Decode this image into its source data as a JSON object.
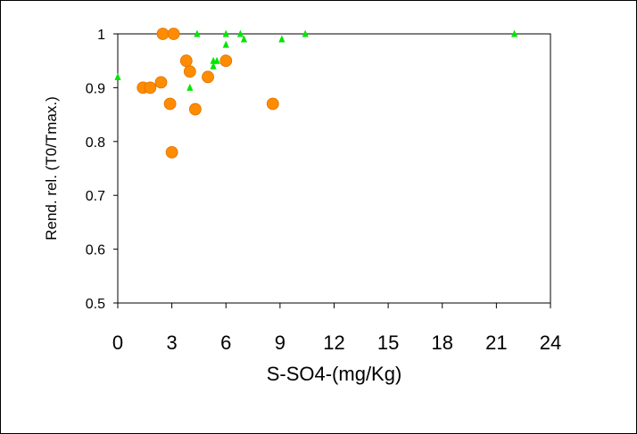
{
  "chart_data": {
    "type": "scatter",
    "title": "",
    "xlabel": "S-SO4-(mg/Kg)",
    "ylabel": "Rend. rel. (T0/Tmax.)",
    "xlim": [
      0,
      24
    ],
    "ylim": [
      0.5,
      1.0
    ],
    "x_ticks": [
      "0",
      "3",
      "6",
      "9",
      "12",
      "15",
      "18",
      "21",
      "24"
    ],
    "y_ticks": [
      "0.5",
      "0.6",
      "0.7",
      "0.8",
      "0.9",
      "1"
    ],
    "grid": false,
    "legend": "none",
    "series": [
      {
        "marker": "circle",
        "color": "#FF8C00",
        "points": [
          [
            2.5,
            1.0
          ],
          [
            3.1,
            1.0
          ],
          [
            1.4,
            0.9
          ],
          [
            1.8,
            0.9
          ],
          [
            2.4,
            0.91
          ],
          [
            3.8,
            0.95
          ],
          [
            4.0,
            0.93
          ],
          [
            5.0,
            0.92
          ],
          [
            6.0,
            0.95
          ],
          [
            2.9,
            0.87
          ],
          [
            4.3,
            0.86
          ],
          [
            8.6,
            0.87
          ],
          [
            3.0,
            0.78
          ]
        ]
      },
      {
        "marker": "triangle",
        "color": "#00E600",
        "points": [
          [
            0.0,
            0.92
          ],
          [
            4.4,
            1.0
          ],
          [
            6.0,
            1.0
          ],
          [
            6.8,
            1.0
          ],
          [
            7.0,
            0.99
          ],
          [
            9.1,
            0.99
          ],
          [
            10.4,
            1.0
          ],
          [
            22.0,
            1.0
          ],
          [
            4.0,
            0.9
          ],
          [
            5.3,
            0.95
          ],
          [
            5.5,
            0.95
          ],
          [
            5.3,
            0.94
          ],
          [
            6.0,
            0.98
          ]
        ]
      }
    ]
  }
}
